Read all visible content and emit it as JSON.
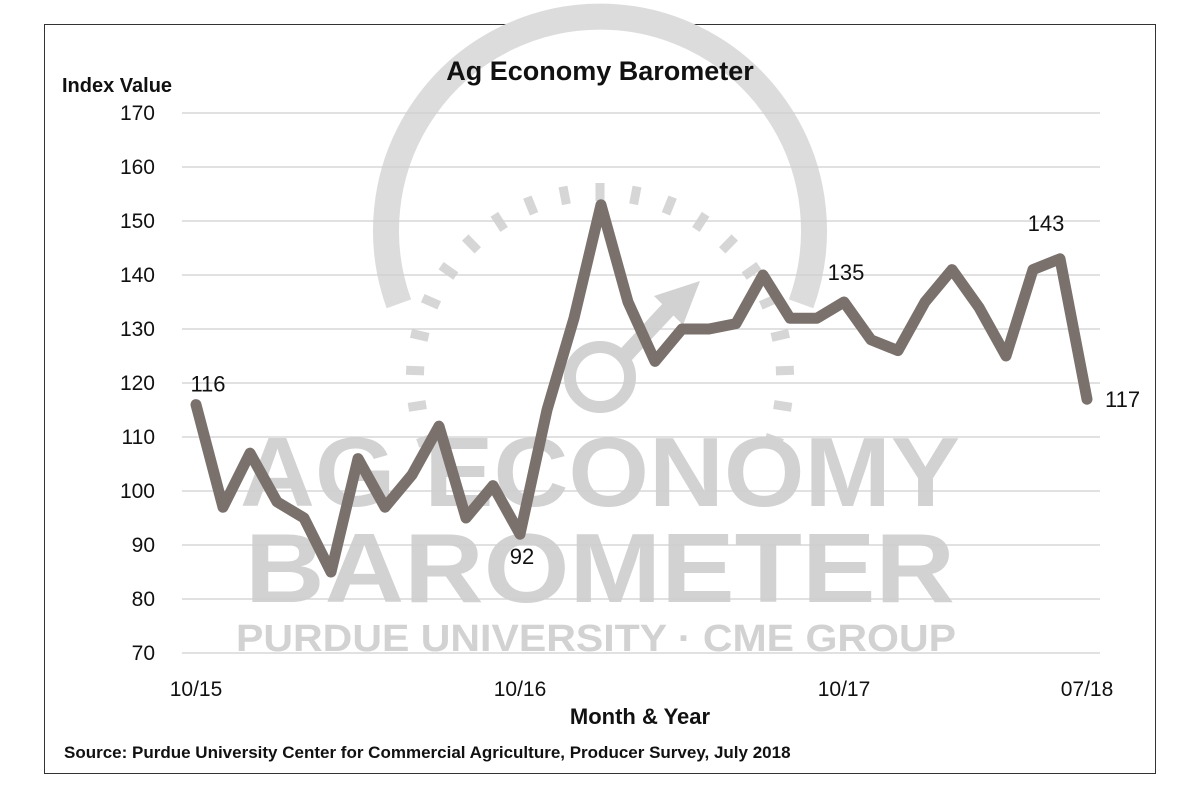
{
  "chart_data": {
    "type": "line",
    "title": "Ag Economy Barometer",
    "ylabel": "Index Value",
    "xlabel": "Month & Year",
    "source": "Source: Purdue University Center for Commercial Agriculture, Producer Survey, July 2018",
    "ylim": [
      70,
      170
    ],
    "yticks": [
      70,
      80,
      90,
      100,
      110,
      120,
      130,
      140,
      150,
      160,
      170
    ],
    "x_tick_labels": [
      {
        "index": 0,
        "label": "10/15"
      },
      {
        "index": 12,
        "label": "10/16"
      },
      {
        "index": 24,
        "label": "10/17"
      },
      {
        "index": 33,
        "label": "07/18"
      }
    ],
    "grid": true,
    "line_color": "#7a716c",
    "series": [
      {
        "values": [
          116,
          97,
          107,
          98,
          95,
          85,
          106,
          97,
          103,
          112,
          95,
          101,
          92,
          115,
          132,
          153,
          135,
          124,
          130,
          130,
          131,
          140,
          132,
          132,
          135,
          128,
          126,
          135,
          141,
          134,
          125,
          141,
          143,
          117
        ]
      }
    ],
    "annotations": [
      {
        "index": 0,
        "text": "116"
      },
      {
        "index": 12,
        "text": "92"
      },
      {
        "index": 24,
        "text": "135"
      },
      {
        "index": 32,
        "text": "143"
      },
      {
        "index": 33,
        "text": "117"
      }
    ],
    "watermark": {
      "line1": "AG ECONOMY",
      "line2": "BAROMETER",
      "line3": "PURDUE UNIVERSITY · CME GROUP"
    }
  }
}
